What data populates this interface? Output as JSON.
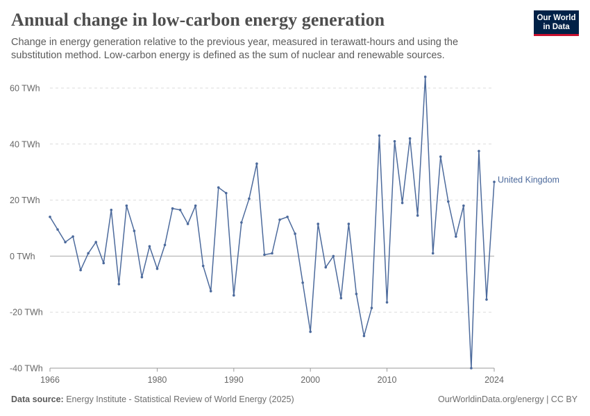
{
  "header": {
    "title": "Annual change in low-carbon energy generation",
    "subtitle": "Change in energy generation relative to the previous year, measured in terawatt-hours and using the substitution method. Low-carbon energy is defined as the sum of nuclear and renewable sources.",
    "logo_line1": "Our World",
    "logo_line2": "in Data"
  },
  "footer": {
    "source_label": "Data source:",
    "source_text": "Energy Institute - Statistical Review of World Energy (2025)",
    "credit": "OurWorldinData.org/energy | CC BY"
  },
  "chart_data": {
    "type": "line",
    "title": "Annual change in low-carbon energy generation",
    "xlabel": "",
    "ylabel": "",
    "xlim": [
      1966,
      2024
    ],
    "ylim": [
      -40,
      60
    ],
    "y_ticks": [
      -40,
      -20,
      0,
      20,
      40,
      60
    ],
    "y_tick_labels": [
      "-40 TWh",
      "-20 TWh",
      "0 TWh",
      "20 TWh",
      "40 TWh",
      "60 TWh"
    ],
    "x_ticks": [
      1966,
      1980,
      1990,
      2000,
      2010,
      2024
    ],
    "x_tick_labels": [
      "1966",
      "1980",
      "1990",
      "2000",
      "2010",
      "2024"
    ],
    "grid": true,
    "color": "#4c6a9c",
    "series": [
      {
        "name": "United Kingdom",
        "x": [
          1966,
          1967,
          1968,
          1969,
          1970,
          1971,
          1972,
          1973,
          1974,
          1975,
          1976,
          1977,
          1978,
          1979,
          1980,
          1981,
          1982,
          1983,
          1984,
          1985,
          1986,
          1987,
          1988,
          1989,
          1990,
          1991,
          1992,
          1993,
          1994,
          1995,
          1996,
          1997,
          1998,
          1999,
          2000,
          2001,
          2002,
          2003,
          2004,
          2005,
          2006,
          2007,
          2008,
          2009,
          2010,
          2011,
          2012,
          2013,
          2014,
          2015,
          2016,
          2017,
          2018,
          2019,
          2020,
          2021,
          2022,
          2023,
          2024
        ],
        "values": [
          14,
          9.5,
          5,
          7,
          -5,
          1,
          5,
          -2.5,
          16.5,
          -10,
          18,
          9,
          -7.5,
          3.5,
          -4.5,
          4,
          17,
          16.5,
          11.5,
          18,
          -3.5,
          -12.5,
          24.5,
          22.5,
          -14,
          12,
          20.5,
          33,
          0.5,
          1,
          13,
          14,
          8,
          -9.5,
          -27,
          11.5,
          -4,
          0,
          -15,
          11.5,
          -13.5,
          -28.5,
          -18.5,
          43,
          -16.5,
          41,
          19,
          42,
          14.5,
          64,
          1,
          35.5,
          19.5,
          7,
          18,
          -40,
          37.5,
          -15.5,
          26.5
        ]
      }
    ]
  }
}
